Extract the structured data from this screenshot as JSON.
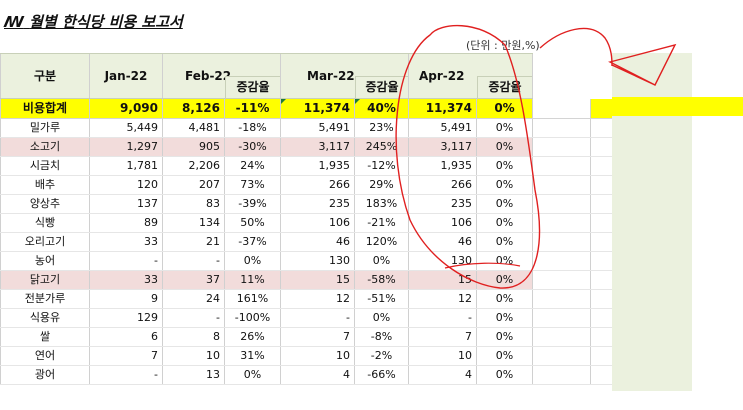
{
  "title": "월별 한식당 비용 보고서",
  "title_icon": "ꟿ",
  "unit": "(단위 : 만원,%)",
  "headers": {
    "item": "구분",
    "jan": "Jan-22",
    "feb": "Feb-22",
    "mar": "Mar-22",
    "apr": "Apr-22",
    "pct": "증감율"
  },
  "total": {
    "label": "비용합계",
    "jan": "9,090",
    "feb": "8,126",
    "feb_pct": "-11%",
    "mar": "11,374",
    "mar_pct": "40%",
    "apr": "11,374",
    "apr_pct": "0%"
  },
  "rows": [
    {
      "name": "밀가루",
      "jan": "5,449",
      "feb": "4,481",
      "feb_pct": "-18%",
      "mar": "5,491",
      "mar_pct": "23%",
      "apr": "5,491",
      "apr_pct": "0%",
      "hl": false
    },
    {
      "name": "소고기",
      "jan": "1,297",
      "feb": "905",
      "feb_pct": "-30%",
      "mar": "3,117",
      "mar_pct": "245%",
      "apr": "3,117",
      "apr_pct": "0%",
      "hl": true
    },
    {
      "name": "시금치",
      "jan": "1,781",
      "feb": "2,206",
      "feb_pct": "24%",
      "mar": "1,935",
      "mar_pct": "-12%",
      "apr": "1,935",
      "apr_pct": "0%",
      "hl": false
    },
    {
      "name": "배추",
      "jan": "120",
      "feb": "207",
      "feb_pct": "73%",
      "mar": "266",
      "mar_pct": "29%",
      "apr": "266",
      "apr_pct": "0%",
      "hl": false
    },
    {
      "name": "양상추",
      "jan": "137",
      "feb": "83",
      "feb_pct": "-39%",
      "mar": "235",
      "mar_pct": "183%",
      "apr": "235",
      "apr_pct": "0%",
      "hl": false
    },
    {
      "name": "식빵",
      "jan": "89",
      "feb": "134",
      "feb_pct": "50%",
      "mar": "106",
      "mar_pct": "-21%",
      "apr": "106",
      "apr_pct": "0%",
      "hl": false
    },
    {
      "name": "오리고기",
      "jan": "33",
      "feb": "21",
      "feb_pct": "-37%",
      "mar": "46",
      "mar_pct": "120%",
      "apr": "46",
      "apr_pct": "0%",
      "hl": false
    },
    {
      "name": "농어",
      "jan": "-",
      "feb": "-",
      "feb_pct": "0%",
      "mar": "130",
      "mar_pct": "0%",
      "apr": "130",
      "apr_pct": "0%",
      "hl": false
    },
    {
      "name": "닭고기",
      "jan": "33",
      "feb": "37",
      "feb_pct": "11%",
      "mar": "15",
      "mar_pct": "-58%",
      "apr": "15",
      "apr_pct": "0%",
      "hl": true
    },
    {
      "name": "전분가루",
      "jan": "9",
      "feb": "24",
      "feb_pct": "161%",
      "mar": "12",
      "mar_pct": "-51%",
      "apr": "12",
      "apr_pct": "0%",
      "hl": false
    },
    {
      "name": "식용유",
      "jan": "129",
      "feb": "-",
      "feb_pct": "-100%",
      "mar": "-",
      "mar_pct": "0%",
      "apr": "-",
      "apr_pct": "0%",
      "hl": false
    },
    {
      "name": "쌀",
      "jan": "6",
      "feb": "8",
      "feb_pct": "26%",
      "mar": "7",
      "mar_pct": "-8%",
      "apr": "7",
      "apr_pct": "0%",
      "hl": false
    },
    {
      "name": "연어",
      "jan": "7",
      "feb": "10",
      "feb_pct": "31%",
      "mar": "10",
      "mar_pct": "-2%",
      "apr": "10",
      "apr_pct": "0%",
      "hl": false
    },
    {
      "name": "광어",
      "jan": "-",
      "feb": "13",
      "feb_pct": "0%",
      "mar": "4",
      "mar_pct": "-66%",
      "apr": "4",
      "apr_pct": "0%",
      "hl": false
    }
  ],
  "colors": {
    "header_bg": "#ebf1de",
    "total_bg": "#ffff00",
    "highlight_row": "#f2dcdb",
    "annotation_ink": "#e02020"
  }
}
